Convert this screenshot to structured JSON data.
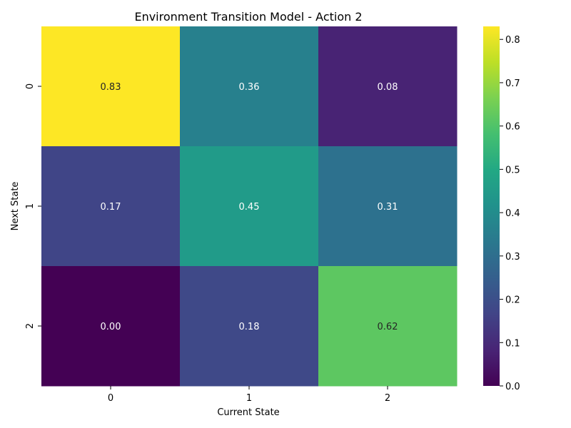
{
  "chart_data": {
    "type": "heatmap",
    "title": "Environment Transition Model - Action 2",
    "xlabel": "Current State",
    "ylabel": "Next State",
    "x_categories": [
      "0",
      "1",
      "2"
    ],
    "y_categories": [
      "0",
      "1",
      "2"
    ],
    "values": [
      [
        0.83,
        0.36,
        0.08
      ],
      [
        0.17,
        0.45,
        0.31
      ],
      [
        0.0,
        0.18,
        0.62
      ]
    ],
    "value_labels": [
      [
        "0.83",
        "0.36",
        "0.08"
      ],
      [
        "0.17",
        "0.45",
        "0.31"
      ],
      [
        "0.00",
        "0.18",
        "0.62"
      ]
    ],
    "colorbar": {
      "range": [
        0.0,
        0.83
      ],
      "ticks": [
        0.0,
        0.1,
        0.2,
        0.3,
        0.4,
        0.5,
        0.6,
        0.7,
        0.8
      ],
      "tick_labels": [
        "0.0",
        "0.1",
        "0.2",
        "0.3",
        "0.4",
        "0.5",
        "0.6",
        "0.7",
        "0.8"
      ]
    },
    "colormap": "viridis"
  }
}
